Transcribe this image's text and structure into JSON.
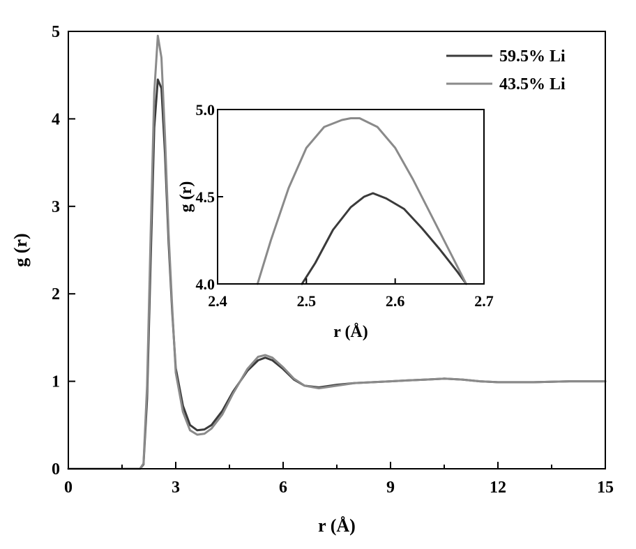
{
  "chart_data": [
    {
      "type": "line",
      "xlabel": "r (Å)",
      "ylabel": "g (r)",
      "xlim": [
        0,
        15
      ],
      "ylim": [
        0,
        5
      ],
      "xticks": [
        0,
        3,
        6,
        9,
        12,
        15
      ],
      "yticks": [
        0,
        1,
        2,
        3,
        4,
        5
      ],
      "grid": false,
      "legend_position": "top-right",
      "series": [
        {
          "name": "59.5% Li",
          "color": "#3a3a3a",
          "x": [
            0,
            1.5,
            2.0,
            2.1,
            2.2,
            2.3,
            2.4,
            2.5,
            2.6,
            2.7,
            2.8,
            2.9,
            3.0,
            3.2,
            3.4,
            3.6,
            3.8,
            4.0,
            4.3,
            4.6,
            5.0,
            5.3,
            5.5,
            5.7,
            6.0,
            6.3,
            6.6,
            7.0,
            7.5,
            8.0,
            8.5,
            9.0,
            9.5,
            10.0,
            10.5,
            11.0,
            11.5,
            12.0,
            13.0,
            14.0,
            15.0
          ],
          "y": [
            0,
            0,
            0,
            0.05,
            0.8,
            2.4,
            3.9,
            4.45,
            4.35,
            3.6,
            2.6,
            1.8,
            1.15,
            0.72,
            0.5,
            0.44,
            0.45,
            0.5,
            0.66,
            0.88,
            1.12,
            1.24,
            1.27,
            1.24,
            1.14,
            1.02,
            0.95,
            0.93,
            0.96,
            0.98,
            0.99,
            1.0,
            1.01,
            1.02,
            1.03,
            1.02,
            1.0,
            0.99,
            0.99,
            1.0,
            1.0
          ]
        },
        {
          "name": "43.5% Li",
          "color": "#8a8a8a",
          "x": [
            0,
            1.5,
            2.0,
            2.1,
            2.2,
            2.3,
            2.4,
            2.5,
            2.6,
            2.7,
            2.8,
            2.9,
            3.0,
            3.2,
            3.4,
            3.6,
            3.8,
            4.0,
            4.3,
            4.6,
            5.0,
            5.3,
            5.5,
            5.7,
            6.0,
            6.3,
            6.6,
            7.0,
            7.5,
            8.0,
            8.5,
            9.0,
            9.5,
            10.0,
            10.5,
            11.0,
            11.5,
            12.0,
            13.0,
            14.0,
            15.0
          ],
          "y": [
            0,
            0,
            0,
            0.06,
            0.95,
            2.7,
            4.3,
            4.95,
            4.7,
            3.8,
            2.7,
            1.85,
            1.1,
            0.65,
            0.44,
            0.39,
            0.4,
            0.46,
            0.62,
            0.86,
            1.14,
            1.28,
            1.3,
            1.27,
            1.16,
            1.03,
            0.95,
            0.92,
            0.95,
            0.98,
            0.99,
            1.0,
            1.01,
            1.02,
            1.03,
            1.02,
            1.0,
            0.99,
            0.99,
            1.0,
            1.0
          ]
        }
      ]
    },
    {
      "type": "line",
      "xlabel": "r (Å)",
      "ylabel": "g (r)",
      "xlim": [
        2.4,
        2.7
      ],
      "ylim": [
        4.0,
        5.0
      ],
      "xticks": [
        2.4,
        2.5,
        2.6,
        2.7
      ],
      "xtick_labels": [
        "2.4",
        "2.5",
        "2.6",
        "2.7"
      ],
      "yticks": [
        4.0,
        4.5,
        5.0
      ],
      "ytick_labels": [
        "4.0",
        "4.5",
        "5.0"
      ],
      "grid": false,
      "series": [
        {
          "name": "59.5% Li",
          "color": "#3a3a3a",
          "x": [
            2.495,
            2.51,
            2.53,
            2.55,
            2.565,
            2.575,
            2.59,
            2.61,
            2.63,
            2.65,
            2.67,
            2.68
          ],
          "y": [
            4.0,
            4.12,
            4.31,
            4.44,
            4.5,
            4.52,
            4.49,
            4.43,
            4.32,
            4.2,
            4.07,
            4.0
          ]
        },
        {
          "name": "43.5% Li",
          "color": "#8a8a8a",
          "x": [
            2.445,
            2.46,
            2.48,
            2.5,
            2.52,
            2.54,
            2.55,
            2.56,
            2.58,
            2.6,
            2.62,
            2.64,
            2.66,
            2.68
          ],
          "y": [
            4.0,
            4.25,
            4.55,
            4.78,
            4.9,
            4.94,
            4.95,
            4.95,
            4.9,
            4.78,
            4.6,
            4.4,
            4.2,
            4.0
          ]
        }
      ]
    }
  ]
}
